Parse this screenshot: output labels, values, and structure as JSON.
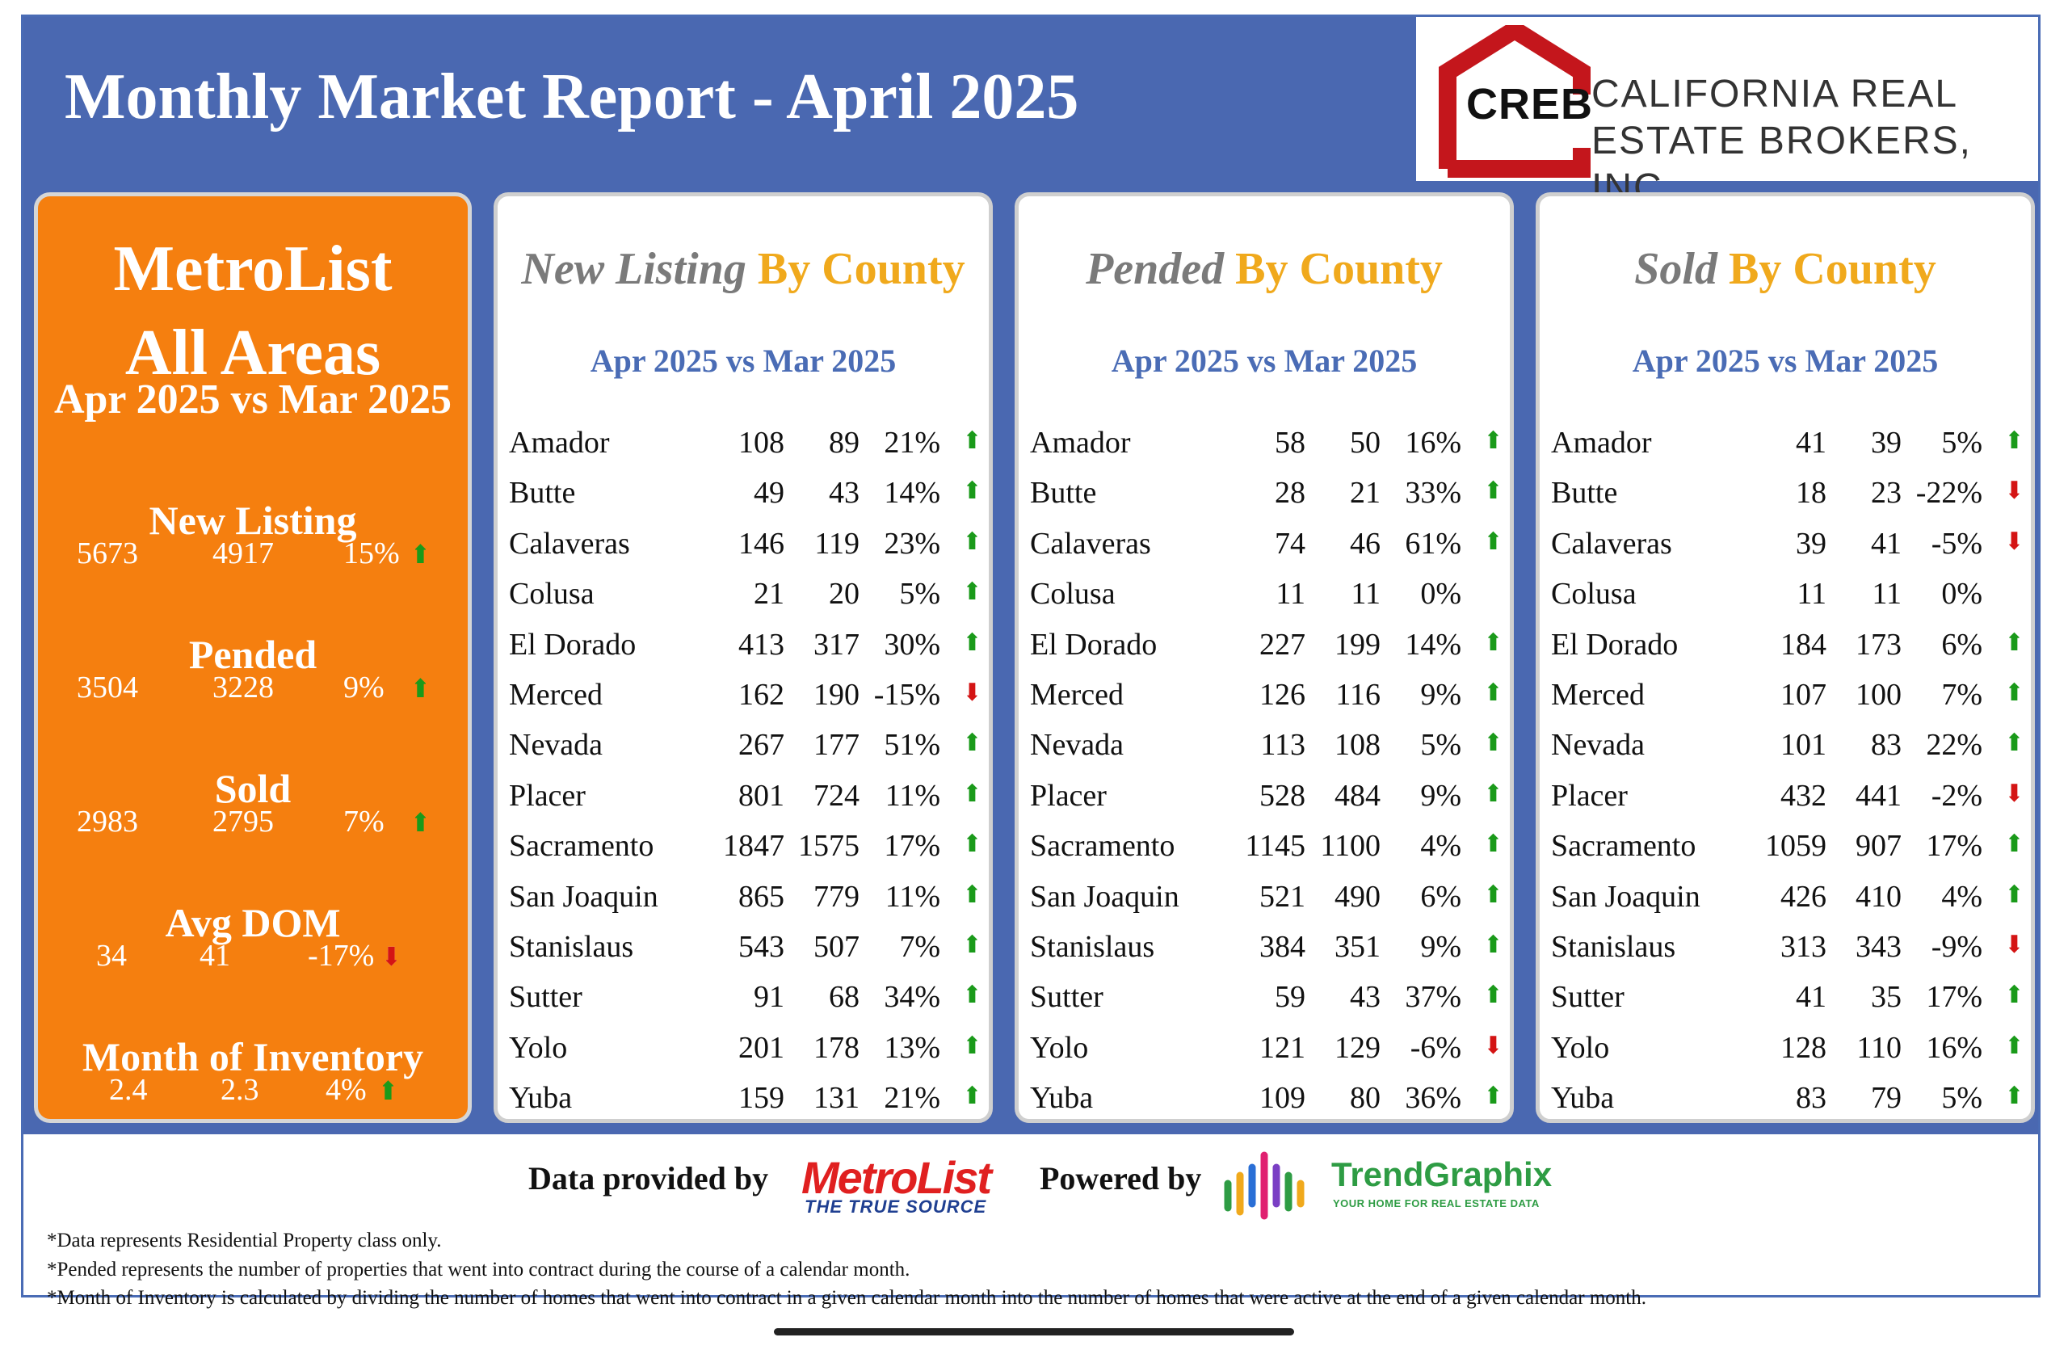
{
  "header": {
    "title": "Monthly Market Report - April 2025"
  },
  "logo": {
    "abbr": "CREB",
    "company_line1": "CALIFORNIA REAL",
    "company_line2": "ESTATE BROKERS, INC."
  },
  "summary": {
    "title_line1": "MetroList",
    "title_line2": "All Areas",
    "comparison": "Apr 2025 vs Mar 2025",
    "metrics": [
      {
        "label": "New Listing",
        "current": "5673",
        "previous": "4917",
        "change": "15%",
        "trend": "up"
      },
      {
        "label": "Pended",
        "current": "3504",
        "previous": "3228",
        "change": "9%",
        "trend": "up"
      },
      {
        "label": "Sold",
        "current": "2983",
        "previous": "2795",
        "change": "7%",
        "trend": "up"
      },
      {
        "label": "Avg DOM",
        "current": "34",
        "previous": "41",
        "change": "-17%",
        "trend": "down"
      },
      {
        "label": "Month of Inventory",
        "current": "2.4",
        "previous": "2.3",
        "change": "4%",
        "trend": "up"
      }
    ]
  },
  "panels": [
    {
      "title_italic": "New Listing",
      "title_rest": "By County",
      "subtitle": "Apr 2025 vs Mar 2025",
      "rows": [
        {
          "county": "Amador",
          "current": "108",
          "previous": "89",
          "change": "21%",
          "trend": "up"
        },
        {
          "county": "Butte",
          "current": "49",
          "previous": "43",
          "change": "14%",
          "trend": "up"
        },
        {
          "county": "Calaveras",
          "current": "146",
          "previous": "119",
          "change": "23%",
          "trend": "up"
        },
        {
          "county": "Colusa",
          "current": "21",
          "previous": "20",
          "change": "5%",
          "trend": "up"
        },
        {
          "county": "El Dorado",
          "current": "413",
          "previous": "317",
          "change": "30%",
          "trend": "up"
        },
        {
          "county": "Merced",
          "current": "162",
          "previous": "190",
          "change": "-15%",
          "trend": "down"
        },
        {
          "county": "Nevada",
          "current": "267",
          "previous": "177",
          "change": "51%",
          "trend": "up"
        },
        {
          "county": "Placer",
          "current": "801",
          "previous": "724",
          "change": "11%",
          "trend": "up"
        },
        {
          "county": "Sacramento",
          "current": "1847",
          "previous": "1575",
          "change": "17%",
          "trend": "up"
        },
        {
          "county": "San Joaquin",
          "current": "865",
          "previous": "779",
          "change": "11%",
          "trend": "up"
        },
        {
          "county": "Stanislaus",
          "current": "543",
          "previous": "507",
          "change": "7%",
          "trend": "up"
        },
        {
          "county": "Sutter",
          "current": "91",
          "previous": "68",
          "change": "34%",
          "trend": "up"
        },
        {
          "county": "Yolo",
          "current": "201",
          "previous": "178",
          "change": "13%",
          "trend": "up"
        },
        {
          "county": "Yuba",
          "current": "159",
          "previous": "131",
          "change": "21%",
          "trend": "up"
        }
      ]
    },
    {
      "title_italic": "Pended",
      "title_rest": "By County",
      "subtitle": "Apr 2025 vs Mar 2025",
      "rows": [
        {
          "county": "Amador",
          "current": "58",
          "previous": "50",
          "change": "16%",
          "trend": "up"
        },
        {
          "county": "Butte",
          "current": "28",
          "previous": "21",
          "change": "33%",
          "trend": "up"
        },
        {
          "county": "Calaveras",
          "current": "74",
          "previous": "46",
          "change": "61%",
          "trend": "up"
        },
        {
          "county": "Colusa",
          "current": "11",
          "previous": "11",
          "change": "0%",
          "trend": "none"
        },
        {
          "county": "El Dorado",
          "current": "227",
          "previous": "199",
          "change": "14%",
          "trend": "up"
        },
        {
          "county": "Merced",
          "current": "126",
          "previous": "116",
          "change": "9%",
          "trend": "up"
        },
        {
          "county": "Nevada",
          "current": "113",
          "previous": "108",
          "change": "5%",
          "trend": "up"
        },
        {
          "county": "Placer",
          "current": "528",
          "previous": "484",
          "change": "9%",
          "trend": "up"
        },
        {
          "county": "Sacramento",
          "current": "1145",
          "previous": "1100",
          "change": "4%",
          "trend": "up"
        },
        {
          "county": "San Joaquin",
          "current": "521",
          "previous": "490",
          "change": "6%",
          "trend": "up"
        },
        {
          "county": "Stanislaus",
          "current": "384",
          "previous": "351",
          "change": "9%",
          "trend": "up"
        },
        {
          "county": "Sutter",
          "current": "59",
          "previous": "43",
          "change": "37%",
          "trend": "up"
        },
        {
          "county": "Yolo",
          "current": "121",
          "previous": "129",
          "change": "-6%",
          "trend": "down"
        },
        {
          "county": "Yuba",
          "current": "109",
          "previous": "80",
          "change": "36%",
          "trend": "up"
        }
      ]
    },
    {
      "title_italic": "Sold",
      "title_rest": "By County",
      "subtitle": "Apr 2025 vs Mar 2025",
      "rows": [
        {
          "county": "Amador",
          "current": "41",
          "previous": "39",
          "change": "5%",
          "trend": "up"
        },
        {
          "county": "Butte",
          "current": "18",
          "previous": "23",
          "change": "-22%",
          "trend": "down"
        },
        {
          "county": "Calaveras",
          "current": "39",
          "previous": "41",
          "change": "-5%",
          "trend": "down"
        },
        {
          "county": "Colusa",
          "current": "11",
          "previous": "11",
          "change": "0%",
          "trend": "none"
        },
        {
          "county": "El Dorado",
          "current": "184",
          "previous": "173",
          "change": "6%",
          "trend": "up"
        },
        {
          "county": "Merced",
          "current": "107",
          "previous": "100",
          "change": "7%",
          "trend": "up"
        },
        {
          "county": "Nevada",
          "current": "101",
          "previous": "83",
          "change": "22%",
          "trend": "up"
        },
        {
          "county": "Placer",
          "current": "432",
          "previous": "441",
          "change": "-2%",
          "trend": "down"
        },
        {
          "county": "Sacramento",
          "current": "1059",
          "previous": "907",
          "change": "17%",
          "trend": "up"
        },
        {
          "county": "San Joaquin",
          "current": "426",
          "previous": "410",
          "change": "4%",
          "trend": "up"
        },
        {
          "county": "Stanislaus",
          "current": "313",
          "previous": "343",
          "change": "-9%",
          "trend": "down"
        },
        {
          "county": "Sutter",
          "current": "41",
          "previous": "35",
          "change": "17%",
          "trend": "up"
        },
        {
          "county": "Yolo",
          "current": "128",
          "previous": "110",
          "change": "16%",
          "trend": "up"
        },
        {
          "county": "Yuba",
          "current": "83",
          "previous": "79",
          "change": "5%",
          "trend": "up"
        }
      ]
    }
  ],
  "footer": {
    "data_label": "Data provided by",
    "metrolist_logo": "MetroList",
    "metrolist_tagline": "THE TRUE SOURCE",
    "powered_label": "Powered by",
    "trendgraphix_logo": "TrendGraphix",
    "trendgraphix_tagline": "YOUR HOME FOR REAL ESTATE DATA",
    "notes": [
      "*Data represents Residential Property class only.",
      "*Pended represents the number of properties that went into contract during the course of a calendar month.",
      "*Month of Inventory is calculated by dividing the number of homes that went into contract in a given calendar month into the number of homes that were active at the end of a given calendar month."
    ]
  },
  "colors": {
    "header_blue": "#4a68b1",
    "summary_orange": "#f57f0f",
    "title_orange": "#f0a91c",
    "subtitle_blue": "#4a6cb5",
    "up_green": "#1a9a1a",
    "down_red": "#d41414",
    "logo_red": "#c4161c"
  },
  "icons": {
    "up": "up-arrow-icon",
    "down": "down-arrow-icon"
  }
}
